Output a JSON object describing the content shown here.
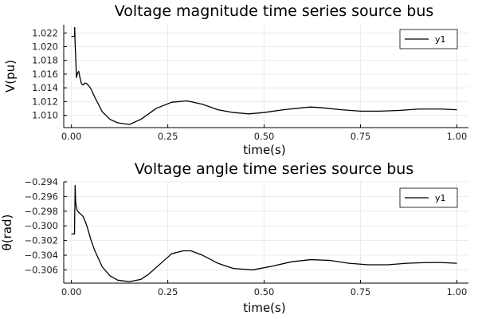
{
  "chart_data": [
    {
      "type": "line",
      "title": "Voltage magnitude time series source bus",
      "xlabel": "time(s)",
      "ylabel": "V(pu)",
      "xlim": [
        -0.02,
        1.03
      ],
      "ylim": [
        1.0082,
        1.0232
      ],
      "xticks": [
        0.0,
        0.25,
        0.5,
        0.75,
        1.0
      ],
      "xtick_labels": [
        "0.00",
        "0.25",
        "0.50",
        "0.75",
        "1.00"
      ],
      "yticks": [
        1.01,
        1.012,
        1.014,
        1.016,
        1.018,
        1.02,
        1.022
      ],
      "ytick_labels": [
        "1.010",
        "1.012",
        "1.014",
        "1.016",
        "1.018",
        "1.020",
        "1.022"
      ],
      "grid": true,
      "legend_position": "top-right",
      "series": [
        {
          "name": "y1",
          "color": "#000000",
          "x": [
            0.0,
            0.008,
            0.0085,
            0.0095,
            0.011,
            0.013,
            0.016,
            0.019,
            0.022,
            0.026,
            0.03,
            0.035,
            0.04,
            0.045,
            0.05,
            0.06,
            0.08,
            0.1,
            0.12,
            0.15,
            0.18,
            0.22,
            0.26,
            0.3,
            0.34,
            0.38,
            0.42,
            0.46,
            0.5,
            0.55,
            0.6,
            0.62,
            0.65,
            0.7,
            0.75,
            0.8,
            0.85,
            0.9,
            0.93,
            0.96,
            1.0
          ],
          "y": [
            1.0215,
            1.0215,
            1.0228,
            1.0205,
            1.0185,
            1.0155,
            1.0162,
            1.0164,
            1.0155,
            1.0146,
            1.0144,
            1.0147,
            1.0146,
            1.0143,
            1.0139,
            1.0127,
            1.0105,
            1.0094,
            1.0089,
            1.00865,
            1.0094,
            1.011,
            1.0119,
            1.0121,
            1.0116,
            1.0108,
            1.0104,
            1.0102,
            1.0104,
            1.0108,
            1.0111,
            1.0112,
            1.0111,
            1.0108,
            1.0106,
            1.0106,
            1.0107,
            1.0109,
            1.0109,
            1.0109,
            1.0108
          ]
        }
      ]
    },
    {
      "type": "line",
      "title": "Voltage angle time series source bus",
      "xlabel": "time(s)",
      "ylabel": "θ(rad)",
      "xlim": [
        -0.02,
        1.03
      ],
      "ylim": [
        -0.3078,
        -0.294
      ],
      "xticks": [
        0.0,
        0.25,
        0.5,
        0.75,
        1.0
      ],
      "xtick_labels": [
        "0.00",
        "0.25",
        "0.50",
        "0.75",
        "1.00"
      ],
      "yticks": [
        -0.306,
        -0.304,
        -0.302,
        -0.3,
        -0.298,
        -0.296,
        -0.294
      ],
      "ytick_labels": [
        "−0.306",
        "−0.304",
        "−0.302",
        "−0.300",
        "−0.298",
        "−0.296",
        "−0.294"
      ],
      "grid": true,
      "legend_position": "top-right",
      "series": [
        {
          "name": "y1",
          "color": "#000000",
          "x": [
            0.0,
            0.008,
            0.0085,
            0.009,
            0.0095,
            0.011,
            0.014,
            0.018,
            0.022,
            0.026,
            0.03,
            0.035,
            0.04,
            0.05,
            0.06,
            0.08,
            0.1,
            0.12,
            0.15,
            0.18,
            0.2,
            0.23,
            0.26,
            0.29,
            0.31,
            0.34,
            0.38,
            0.42,
            0.47,
            0.52,
            0.57,
            0.62,
            0.67,
            0.72,
            0.77,
            0.82,
            0.87,
            0.92,
            0.96,
            1.0
          ],
          "y": [
            -0.3011,
            -0.3011,
            -0.298,
            -0.2975,
            -0.2945,
            -0.2968,
            -0.2978,
            -0.2981,
            -0.2983,
            -0.2985,
            -0.2987,
            -0.2993,
            -0.3,
            -0.3018,
            -0.3033,
            -0.3056,
            -0.3068,
            -0.3074,
            -0.3076,
            -0.3073,
            -0.3066,
            -0.3052,
            -0.3038,
            -0.3034,
            -0.3034,
            -0.304,
            -0.3051,
            -0.3058,
            -0.306,
            -0.3055,
            -0.3049,
            -0.3046,
            -0.3047,
            -0.3051,
            -0.3053,
            -0.3053,
            -0.3051,
            -0.305,
            -0.305,
            -0.3051
          ]
        }
      ]
    }
  ]
}
